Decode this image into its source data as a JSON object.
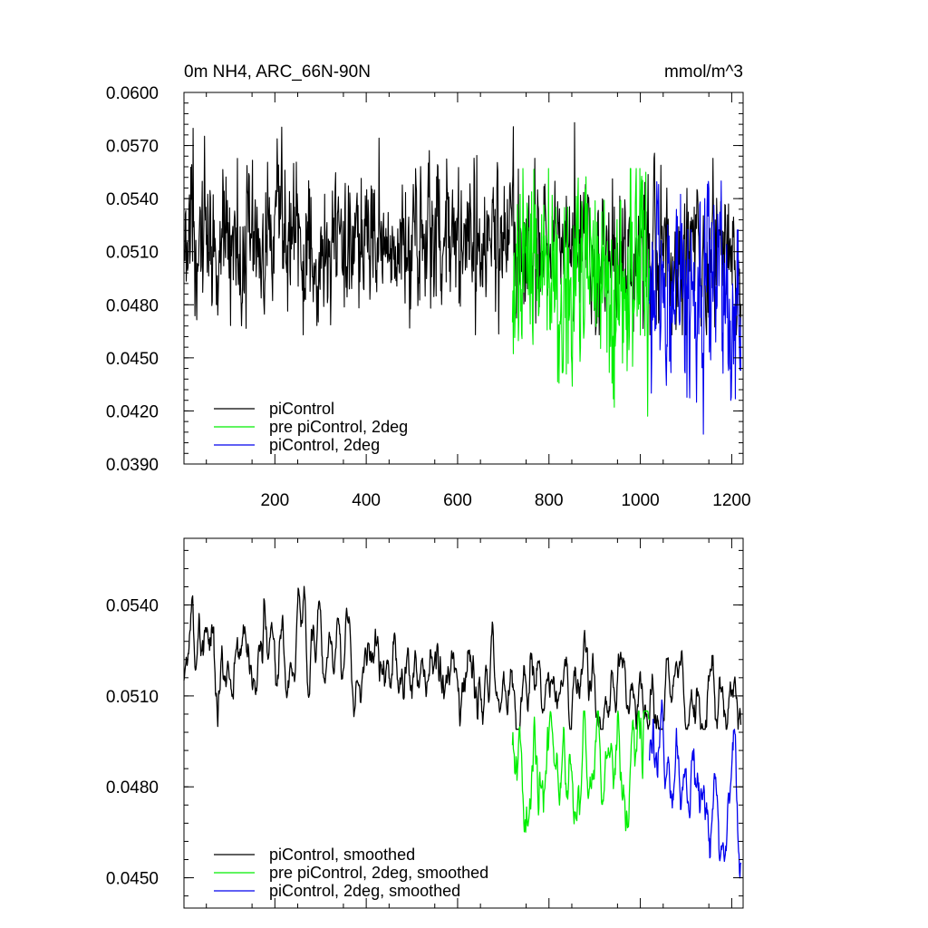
{
  "chart_data": [
    {
      "type": "line",
      "title_left": "0m NH4, ARC_66N-90N",
      "title_right": "mmol/m^3",
      "xlabel": "",
      "ylabel": "",
      "xlim": [
        1,
        1225
      ],
      "ylim": [
        0.039,
        0.06
      ],
      "xticks": [
        200,
        400,
        600,
        800,
        1000,
        1200
      ],
      "yticks": [
        0.039,
        0.042,
        0.045,
        0.048,
        0.051,
        0.054,
        0.057,
        0.06
      ],
      "ytick_labels": [
        "0.0390",
        "0.0420",
        "0.0450",
        "0.0480",
        "0.0510",
        "0.0540",
        "0.0570",
        "0.0600"
      ],
      "legend_position": "bottom-left",
      "series": [
        {
          "name": "piControl",
          "color": "#000000",
          "x_start": 1,
          "x_end": 1220,
          "mean": 0.0518,
          "mean_end": 0.0508,
          "amplitude": 0.0021,
          "min": 0.0463,
          "max": 0.0589
        },
        {
          "name": "pre piControl, 2deg",
          "color": "#00ee00",
          "x_start": 720,
          "x_end": 1020,
          "mean": 0.0495,
          "mean_end": 0.0495,
          "amplitude": 0.003,
          "min": 0.0417,
          "max": 0.0557
        },
        {
          "name": "piControl, 2deg",
          "color": "#0000ee",
          "x_start": 1020,
          "x_end": 1220,
          "mean": 0.049,
          "mean_end": 0.0483,
          "amplitude": 0.003,
          "min": 0.0397,
          "max": 0.055
        }
      ]
    },
    {
      "type": "line",
      "title_left": "",
      "title_right": "",
      "xlabel": "",
      "ylabel": "",
      "xlim": [
        1,
        1225
      ],
      "ylim": [
        0.044,
        0.0562
      ],
      "xticks": [
        200,
        400,
        600,
        800,
        1000,
        1200
      ],
      "yticks": [
        0.045,
        0.048,
        0.051,
        0.054
      ],
      "ytick_labels": [
        "0.0450",
        "0.0480",
        "0.0510",
        "0.0540"
      ],
      "legend_position": "bottom-left",
      "series": [
        {
          "name": "piControl, smoothed",
          "color": "#000000",
          "x_start": 1,
          "x_end": 1220,
          "mean": 0.0524,
          "mean_end": 0.0509,
          "amplitude": 0.0008,
          "min": 0.0499,
          "max": 0.0556
        },
        {
          "name": "pre piControl, 2deg, smoothed",
          "color": "#00ee00",
          "x_start": 720,
          "x_end": 1020,
          "mean": 0.0486,
          "mean_end": 0.0488,
          "amplitude": 0.0011,
          "min": 0.0455,
          "max": 0.0505
        },
        {
          "name": "piControl, 2deg, smoothed",
          "color": "#0000ee",
          "x_start": 1020,
          "x_end": 1220,
          "mean": 0.0484,
          "mean_end": 0.0475,
          "amplitude": 0.0011,
          "min": 0.045,
          "max": 0.0514
        }
      ]
    }
  ]
}
